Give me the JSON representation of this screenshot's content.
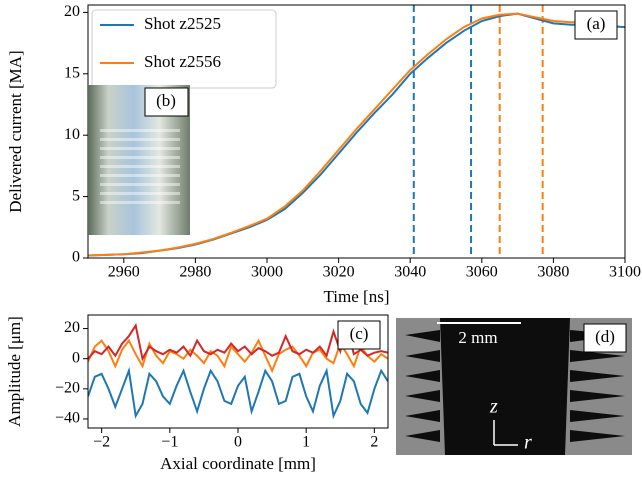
{
  "chart_data": [
    {
      "type": "line",
      "panel_label": "(a)",
      "inset_label": "(b)",
      "xlabel": "Time   [ns]",
      "ylabel": "Delivered current   [MA]",
      "x": [
        2950,
        2955,
        2960,
        2965,
        2970,
        2975,
        2980,
        2985,
        2990,
        2995,
        3000,
        3005,
        3010,
        3015,
        3020,
        3025,
        3030,
        3035,
        3040,
        3045,
        3050,
        3055,
        3060,
        3065,
        3070,
        3075,
        3080,
        3085,
        3090,
        3095,
        3100
      ],
      "series": [
        {
          "name": "Shot z2525",
          "color": "#1f77b4",
          "values": [
            0.2,
            0.25,
            0.3,
            0.4,
            0.6,
            0.8,
            1.1,
            1.5,
            2.0,
            2.5,
            3.1,
            4.0,
            5.3,
            6.8,
            8.5,
            10.2,
            11.8,
            13.3,
            15.0,
            16.3,
            17.5,
            18.5,
            19.3,
            19.7,
            19.9,
            19.5,
            19.1,
            19.0,
            19.0,
            18.9,
            18.8
          ]
        },
        {
          "name": "Shot z2556",
          "color": "#ff7f0e",
          "values": [
            0.2,
            0.25,
            0.3,
            0.45,
            0.6,
            0.85,
            1.15,
            1.55,
            2.05,
            2.6,
            3.2,
            4.2,
            5.5,
            7.1,
            8.8,
            10.5,
            12.1,
            13.7,
            15.3,
            16.6,
            17.8,
            18.8,
            19.5,
            19.8,
            19.9,
            19.6,
            19.3,
            19.2,
            19.2,
            19.2,
            null
          ]
        }
      ],
      "vlines": [
        {
          "x": 3041,
          "color": "#1f77b4"
        },
        {
          "x": 3057,
          "color": "#1f77b4"
        },
        {
          "x": 3065,
          "color": "#ff7f0e"
        },
        {
          "x": 3077,
          "color": "#ff7f0e"
        }
      ],
      "xlim": [
        2950,
        3100
      ],
      "xticks": [
        2960,
        2980,
        3000,
        3020,
        3040,
        3060,
        3080,
        3100
      ],
      "ylim": [
        0,
        20.6
      ],
      "yticks": [
        0,
        5,
        10,
        15,
        20
      ],
      "legend": "upper-left"
    },
    {
      "type": "line",
      "panel_label": "(c)",
      "xlabel": "Axial coordinate [mm]",
      "ylabel": "Amplitude [μm]",
      "x": [
        -2.2,
        -2.1,
        -2.0,
        -1.9,
        -1.8,
        -1.7,
        -1.6,
        -1.5,
        -1.4,
        -1.3,
        -1.2,
        -1.1,
        -1.0,
        -0.9,
        -0.8,
        -0.7,
        -0.6,
        -0.5,
        -0.4,
        -0.3,
        -0.2,
        -0.1,
        0.0,
        0.1,
        0.2,
        0.3,
        0.4,
        0.5,
        0.6,
        0.7,
        0.8,
        0.9,
        1.0,
        1.1,
        1.2,
        1.3,
        1.4,
        1.5,
        1.6,
        1.7,
        1.8,
        1.9,
        2.0,
        2.1,
        2.2
      ],
      "series": [
        {
          "color": "#1f77b4",
          "values": [
            -25,
            -12,
            -10,
            -20,
            -32,
            -20,
            -8,
            -38,
            -30,
            -10,
            -15,
            -25,
            -30,
            -18,
            -8,
            -22,
            -35,
            -20,
            -8,
            -15,
            -28,
            -30,
            -18,
            -12,
            -35,
            -22,
            -8,
            -15,
            -30,
            -28,
            -12,
            -10,
            -25,
            -35,
            -18,
            -8,
            -38,
            -28,
            -10,
            -15,
            -30,
            -36,
            -20,
            -8,
            -15
          ]
        },
        {
          "color": "#ff7f0e",
          "values": [
            -2,
            8,
            12,
            5,
            -5,
            6,
            12,
            3,
            -5,
            10,
            2,
            -3,
            5,
            3,
            0,
            6,
            2,
            -3,
            5,
            2,
            -5,
            8,
            3,
            -2,
            4,
            12,
            2,
            -8,
            3,
            6,
            8,
            2,
            -5,
            4,
            6,
            0,
            -3,
            10,
            3,
            -5,
            8,
            2,
            -2,
            3,
            0
          ]
        },
        {
          "color": "#d62728",
          "values": [
            0,
            5,
            3,
            8,
            2,
            10,
            15,
            22,
            0,
            8,
            5,
            3,
            6,
            4,
            8,
            2,
            12,
            5,
            3,
            6,
            4,
            10,
            5,
            8,
            3,
            7,
            5,
            2,
            4,
            15,
            5,
            3,
            6,
            4,
            8,
            2,
            18,
            5,
            20,
            3,
            6,
            2,
            4,
            5,
            4
          ]
        }
      ],
      "xlim": [
        -2.2,
        2.2
      ],
      "xticks": [
        {
          "value": -2,
          "label": "−2"
        },
        {
          "value": -1,
          "label": "−1"
        },
        0,
        1,
        2
      ],
      "ylim": [
        -46,
        29
      ],
      "yticks": [
        {
          "value": -40,
          "label": "−40"
        },
        {
          "value": -20,
          "label": "−20"
        },
        0,
        20
      ]
    },
    {
      "type": "image",
      "panel_label": "(d)",
      "scale_bar": "2 mm",
      "axis_z": "z",
      "axis_r": "r"
    }
  ]
}
